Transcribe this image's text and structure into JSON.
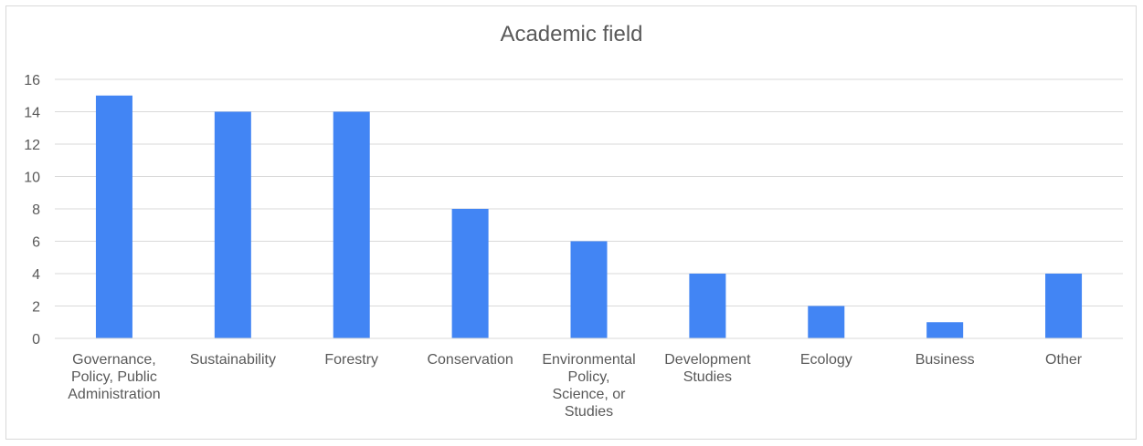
{
  "chart_data": {
    "type": "bar",
    "title": "Academic field",
    "xlabel": "",
    "ylabel": "",
    "categories": [
      [
        "Governance,",
        "Policy, Public",
        "Administration"
      ],
      [
        "Sustainability"
      ],
      [
        "Forestry"
      ],
      [
        "Conservation"
      ],
      [
        "Environmental",
        "Policy,",
        "Science, or",
        "Studies"
      ],
      [
        "Development",
        "Studies"
      ],
      [
        "Ecology"
      ],
      [
        "Business"
      ],
      [
        "Other"
      ]
    ],
    "values": [
      15,
      14,
      14,
      8,
      6,
      4,
      2,
      1,
      4
    ],
    "ylim": [
      0,
      16
    ],
    "yticks": [
      "0",
      "2",
      "4",
      "6",
      "8",
      "10",
      "12",
      "14",
      "16"
    ],
    "grid": true,
    "legend": "none",
    "colors": {
      "bar": "#4285f4",
      "grid": "#d9d9d9",
      "axis": "#595959"
    }
  }
}
